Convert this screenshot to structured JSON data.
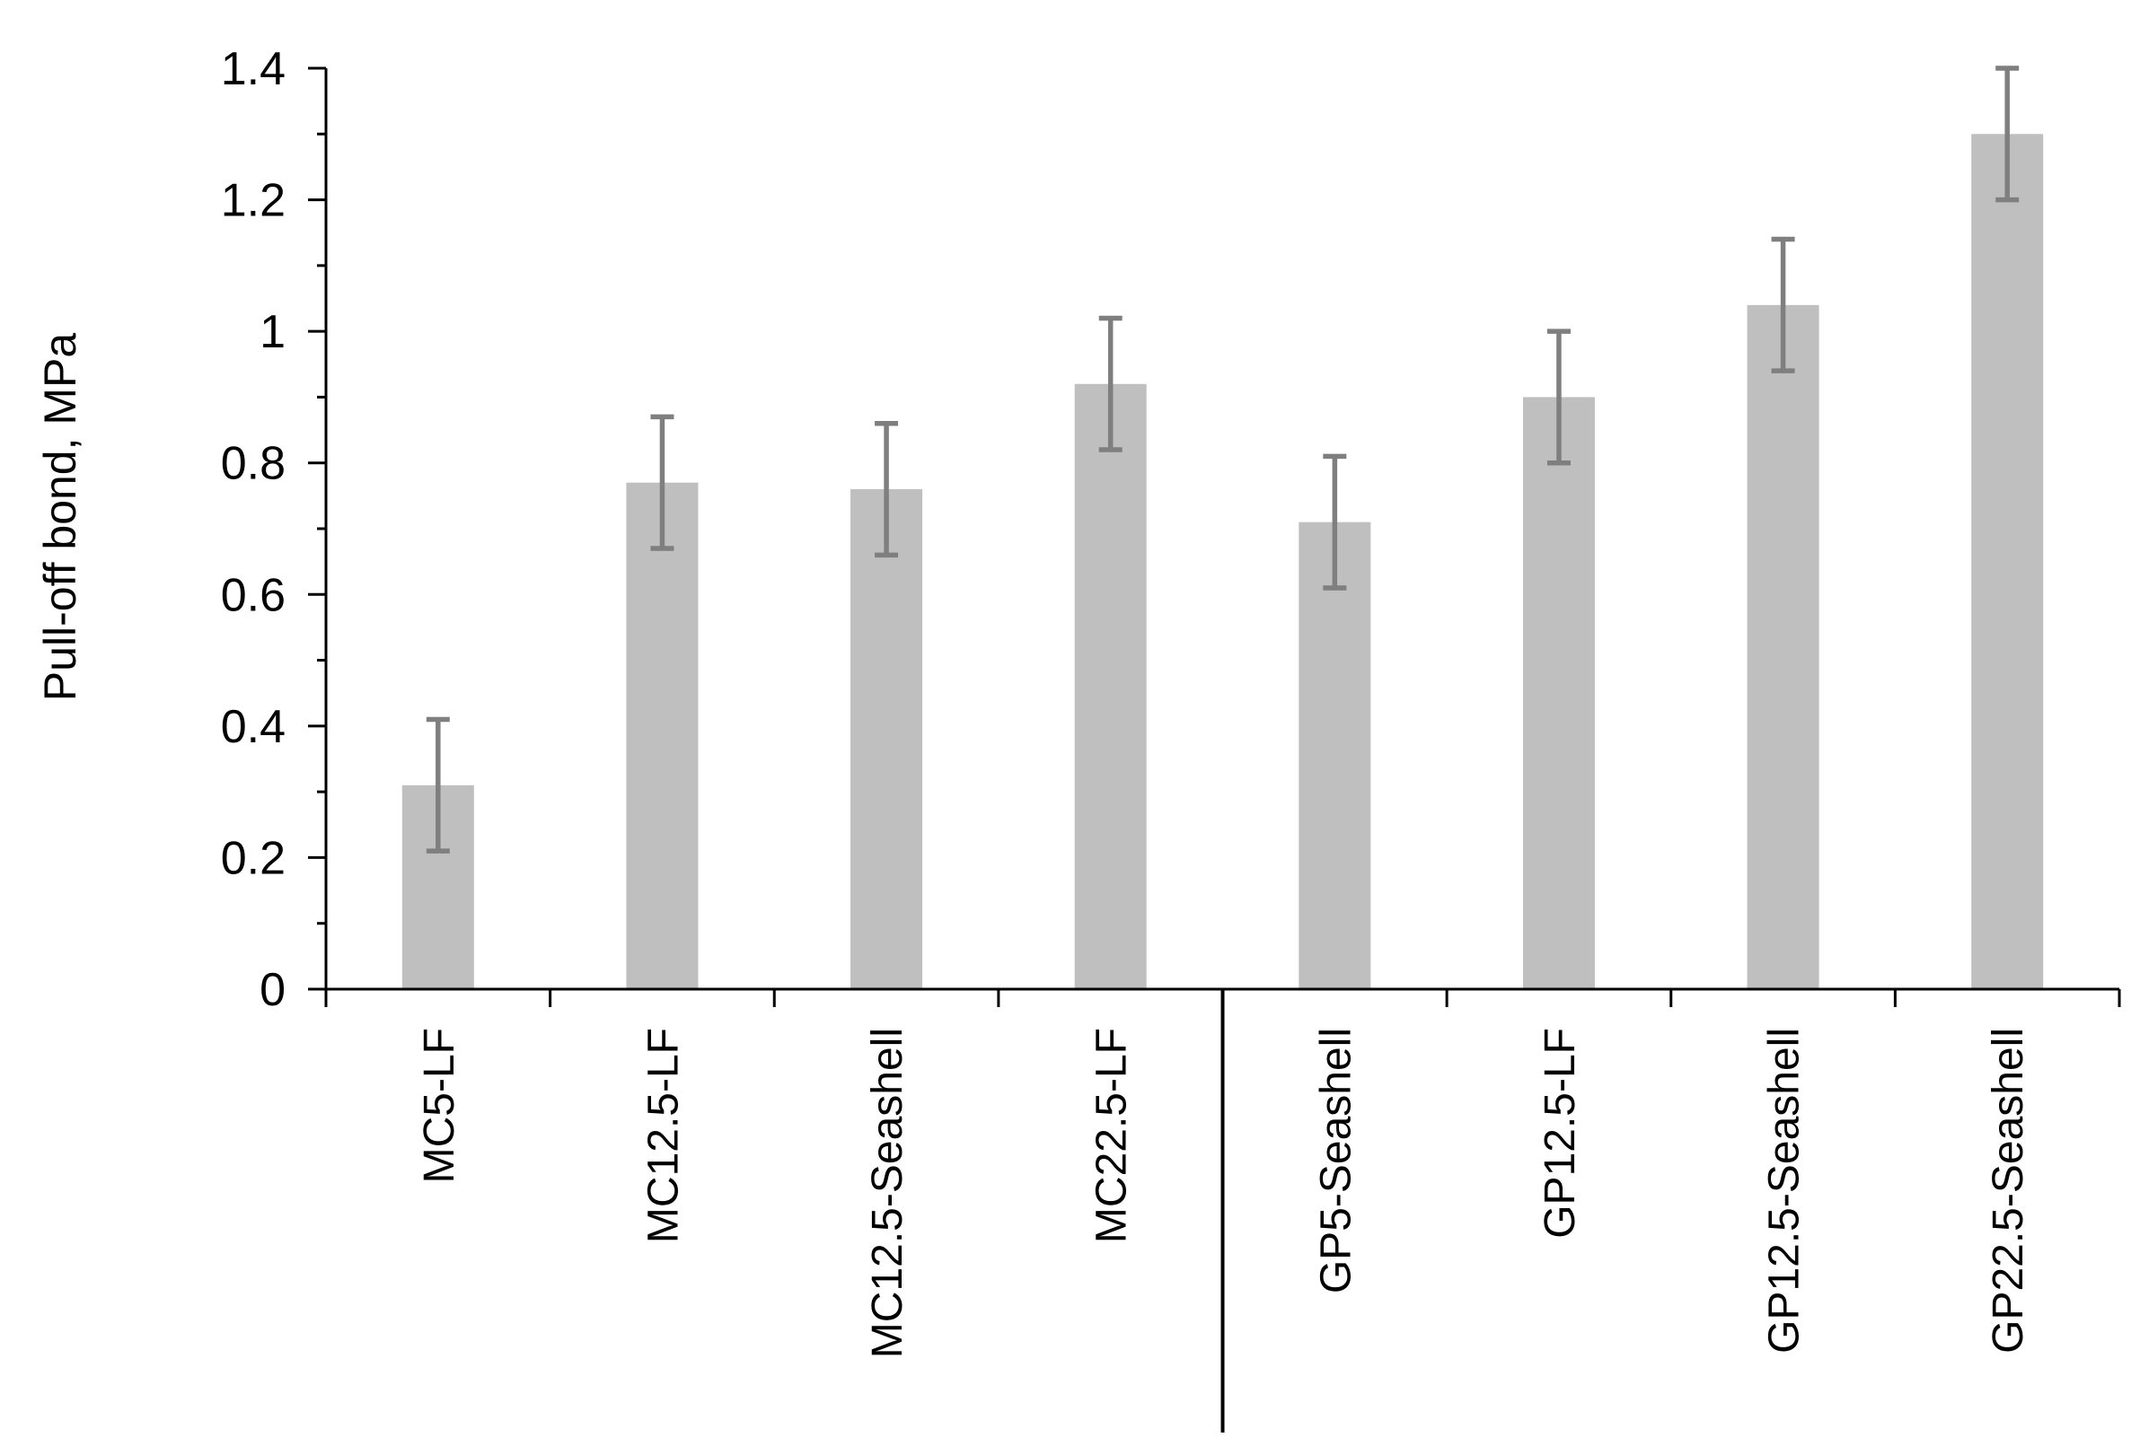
{
  "chart_data": {
    "type": "bar",
    "title": "",
    "xlabel": "",
    "ylabel": "Pull-off bond, MPa",
    "categories": [
      "MC5-LF",
      "MC12.5-LF",
      "MC12.5-Seashell",
      "MC22.5-LF",
      "GP5-Seashell",
      "GP12.5-LF",
      "GP12.5-Seashell",
      "GP22.5-Seashell"
    ],
    "values": [
      0.31,
      0.77,
      0.76,
      0.92,
      0.71,
      0.9,
      1.04,
      1.3
    ],
    "errors": [
      0.1,
      0.1,
      0.1,
      0.1,
      0.1,
      0.1,
      0.1,
      0.1
    ],
    "ylim": [
      0,
      1.4
    ],
    "yticks": [
      "0",
      "0.2",
      "0.4",
      "0.6",
      "0.8",
      "1",
      "1.2",
      "1.4"
    ],
    "grid": false,
    "group_separator_after_index": 3,
    "colors": {
      "bar": "#bfbfbf",
      "error": "#7f7f7f",
      "axis": "#000000"
    }
  }
}
